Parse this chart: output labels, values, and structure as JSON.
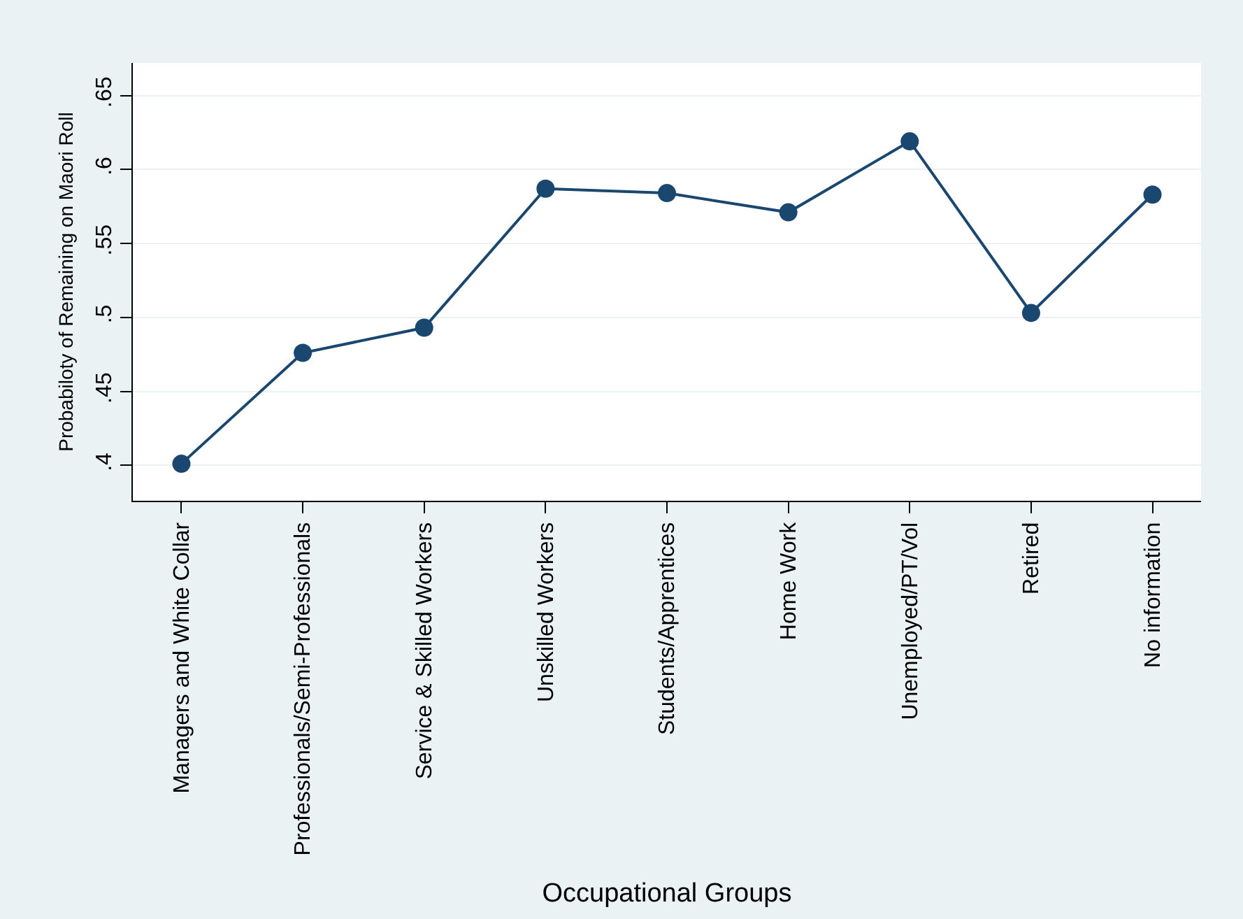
{
  "chart_data": {
    "type": "line",
    "xlabel": "Occupational Groups",
    "ylabel": "Probabiloty of Remaining on Maori Roll",
    "categories": [
      "Managers and White Collar",
      "Professionals/Semi-Professionals",
      "Service & Skilled Workers",
      "Unskilled Workers",
      "Students/Apprentices",
      "Home Work",
      "Unemployed/PT/Vol",
      "Retired",
      "No information"
    ],
    "series": [
      {
        "color": "#1a476f",
        "values": [
          0.401,
          0.476,
          0.493,
          0.587,
          0.584,
          0.571,
          0.619,
          0.503,
          0.583
        ]
      }
    ],
    "ylim": [
      0.376,
      0.672
    ],
    "yticks": [
      {
        "value": 0.4,
        "label": ".4"
      },
      {
        "value": 0.45,
        "label": ".45"
      },
      {
        "value": 0.5,
        "label": ".5"
      },
      {
        "value": 0.55,
        "label": ".55"
      },
      {
        "value": 0.6,
        "label": ".6"
      },
      {
        "value": 0.65,
        "label": ".65"
      }
    ],
    "grid": "y",
    "marker": "circle",
    "line_style": "solid"
  }
}
